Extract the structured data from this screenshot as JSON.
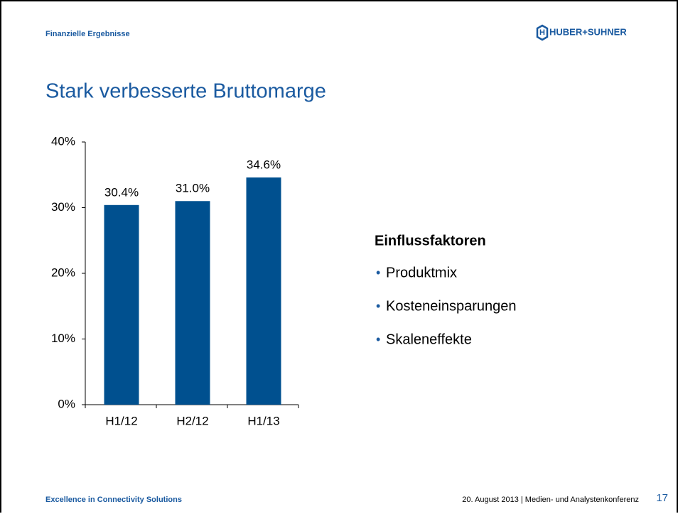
{
  "header": {
    "section": "Finanzielle Ergebnisse",
    "logo": "HUBER+SUHNER"
  },
  "title": "Stark verbesserte Bruttomarge",
  "chart_data": {
    "type": "bar",
    "categories": [
      "H1/12",
      "H2/12",
      "H1/13"
    ],
    "values": [
      30.4,
      31.0,
      34.6
    ],
    "value_labels": [
      "30.4%",
      "31.0%",
      "34.6%"
    ],
    "color": "#00508f",
    "ylim": [
      0,
      40
    ],
    "yticks": [
      {
        "value": 0,
        "label": "0%"
      },
      {
        "value": 10,
        "label": "10%"
      },
      {
        "value": 20,
        "label": "20%"
      },
      {
        "value": 30,
        "label": "30%"
      },
      {
        "value": 40,
        "label": "40%"
      }
    ],
    "grid": false
  },
  "factors": {
    "heading": "Einflussfaktoren",
    "items": [
      "Produktmix",
      "Kosteneinsparungen",
      "Skaleneffekte"
    ]
  },
  "footer": {
    "tagline": "Excellence in Connectivity Solutions",
    "event": "20. August 2013 | Medien- und Analystenkonferenz",
    "page": "17"
  }
}
